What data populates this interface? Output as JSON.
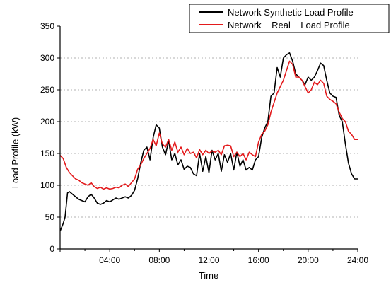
{
  "chart_data": {
    "type": "line",
    "title": "",
    "xlabel": "Time",
    "ylabel": "Load Profile (kW)",
    "x_unit": "hours",
    "xlim": [
      0,
      24
    ],
    "ylim": [
      0,
      350
    ],
    "x_ticks": [
      {
        "value": 4,
        "label": "04:00"
      },
      {
        "value": 8,
        "label": "08:00"
      },
      {
        "value": 12,
        "label": "12:00"
      },
      {
        "value": 16,
        "label": "16:00"
      },
      {
        "value": 20,
        "label": "20:00"
      },
      {
        "value": 24,
        "label": "24:00"
      }
    ],
    "y_ticks": [
      0,
      50,
      100,
      150,
      200,
      250,
      300,
      350
    ],
    "grid": "horizontal dotted",
    "legend_position": "top-right",
    "series": [
      {
        "name": "Network Synthetic Load Profile",
        "color": "#000000",
        "x": [
          0.0,
          0.25,
          0.4,
          0.6,
          0.75,
          1.0,
          1.25,
          1.5,
          1.75,
          2.0,
          2.25,
          2.5,
          2.75,
          3.0,
          3.25,
          3.5,
          3.75,
          4.0,
          4.25,
          4.5,
          4.75,
          5.0,
          5.25,
          5.5,
          5.75,
          6.0,
          6.25,
          6.5,
          6.75,
          7.0,
          7.25,
          7.5,
          7.75,
          8.0,
          8.25,
          8.5,
          8.75,
          9.0,
          9.25,
          9.5,
          9.75,
          10.0,
          10.25,
          10.5,
          10.75,
          11.0,
          11.25,
          11.5,
          11.75,
          12.0,
          12.25,
          12.5,
          12.75,
          13.0,
          13.25,
          13.5,
          13.75,
          14.0,
          14.25,
          14.5,
          14.75,
          15.0,
          15.25,
          15.5,
          15.75,
          16.0,
          16.25,
          16.5,
          16.75,
          17.0,
          17.25,
          17.5,
          17.75,
          18.0,
          18.25,
          18.5,
          18.75,
          19.0,
          19.25,
          19.5,
          19.75,
          20.0,
          20.25,
          20.5,
          20.75,
          21.0,
          21.25,
          21.5,
          21.75,
          22.0,
          22.25,
          22.5,
          22.75,
          23.0,
          23.25,
          23.5,
          23.75,
          24.0
        ],
        "y": [
          28,
          40,
          50,
          88,
          90,
          86,
          82,
          78,
          76,
          74,
          82,
          86,
          80,
          72,
          70,
          72,
          76,
          74,
          77,
          80,
          78,
          80,
          82,
          80,
          84,
          92,
          110,
          135,
          155,
          160,
          140,
          175,
          195,
          190,
          160,
          148,
          170,
          140,
          150,
          132,
          140,
          125,
          130,
          128,
          118,
          115,
          150,
          122,
          145,
          120,
          155,
          140,
          150,
          122,
          148,
          136,
          150,
          124,
          152,
          130,
          140,
          124,
          128,
          124,
          140,
          145,
          175,
          190,
          200,
          240,
          245,
          285,
          270,
          300,
          305,
          308,
          295,
          275,
          270,
          265,
          258,
          270,
          265,
          270,
          280,
          292,
          288,
          265,
          245,
          240,
          238,
          210,
          200,
          165,
          135,
          118,
          110,
          110
        ]
      },
      {
        "name": "Network    Real    Load Profile",
        "color": "#e31a1c",
        "x": [
          0.0,
          0.25,
          0.5,
          0.75,
          1.0,
          1.25,
          1.5,
          1.75,
          2.0,
          2.25,
          2.5,
          2.75,
          3.0,
          3.25,
          3.5,
          3.75,
          4.0,
          4.25,
          4.5,
          4.75,
          5.0,
          5.25,
          5.5,
          5.75,
          6.0,
          6.25,
          6.5,
          6.75,
          7.0,
          7.25,
          7.5,
          7.75,
          8.0,
          8.25,
          8.5,
          8.75,
          9.0,
          9.25,
          9.5,
          9.75,
          10.0,
          10.25,
          10.5,
          10.75,
          11.0,
          11.25,
          11.5,
          11.75,
          12.0,
          12.25,
          12.5,
          12.75,
          13.0,
          13.25,
          13.5,
          13.75,
          14.0,
          14.25,
          14.5,
          14.75,
          15.0,
          15.25,
          15.5,
          15.75,
          16.0,
          16.25,
          16.5,
          16.75,
          17.0,
          17.25,
          17.5,
          17.75,
          18.0,
          18.25,
          18.5,
          18.75,
          19.0,
          19.25,
          19.5,
          19.75,
          20.0,
          20.25,
          20.5,
          20.75,
          21.0,
          21.25,
          21.5,
          21.75,
          22.0,
          22.25,
          22.5,
          22.75,
          23.0,
          23.25,
          23.5,
          23.75,
          24.0
        ],
        "y": [
          147,
          142,
          128,
          120,
          115,
          110,
          108,
          104,
          102,
          100,
          104,
          98,
          95,
          97,
          94,
          96,
          94,
          95,
          97,
          96,
          100,
          102,
          98,
          104,
          110,
          125,
          132,
          142,
          150,
          158,
          172,
          162,
          182,
          165,
          160,
          172,
          155,
          168,
          152,
          160,
          148,
          158,
          150,
          152,
          143,
          156,
          148,
          155,
          150,
          154,
          152,
          155,
          148,
          162,
          163,
          162,
          145,
          152,
          145,
          150,
          140,
          152,
          148,
          145,
          168,
          180,
          185,
          195,
          215,
          230,
          245,
          255,
          265,
          280,
          295,
          290,
          270,
          270,
          265,
          255,
          245,
          250,
          262,
          258,
          265,
          260,
          240,
          235,
          232,
          228,
          215,
          205,
          200,
          185,
          180,
          172,
          172
        ]
      }
    ]
  }
}
